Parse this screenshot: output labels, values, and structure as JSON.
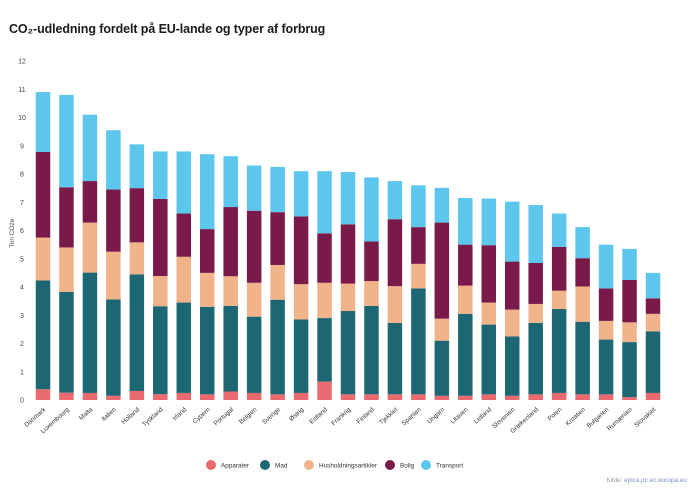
{
  "title": "CO₂-udledning fordelt på EU-lande og typer af forbrug",
  "source_prefix": "Kilde: ",
  "source_link": "eplca.jrc.ec.europa.eu",
  "chart_data": {
    "type": "bar",
    "stacked": true,
    "ylabel": "Ton CO2e",
    "xlabel": "",
    "ylim": [
      0,
      12
    ],
    "yticks": [
      0,
      1,
      2,
      3,
      4,
      5,
      6,
      7,
      8,
      9,
      10,
      11,
      12
    ],
    "grid": false,
    "legend_position": "bottom",
    "categories": [
      "Danmark",
      "Luxembourg",
      "Malta",
      "Italien",
      "Holland",
      "Tyskland",
      "Irland",
      "Cypern",
      "Portugal",
      "Belgien",
      "Sverige",
      "Østrig",
      "Estland",
      "Frankrig",
      "Finland",
      "Tjekkiet",
      "Spanien",
      "Ungarn",
      "Litauen",
      "Letland",
      "Slovenien",
      "Grækenland",
      "Polen",
      "Kroatien",
      "Bulgarien",
      "Rumænien",
      "Slovakiet"
    ],
    "series": [
      {
        "name": "Apparater",
        "color": "#ea6a6f",
        "values": [
          0.38,
          0.26,
          0.25,
          0.15,
          0.32,
          0.21,
          0.25,
          0.2,
          0.3,
          0.25,
          0.2,
          0.25,
          0.65,
          0.2,
          0.2,
          0.2,
          0.2,
          0.15,
          0.15,
          0.2,
          0.15,
          0.2,
          0.25,
          0.2,
          0.2,
          0.1,
          0.25
        ]
      },
      {
        "name": "Mad",
        "color": "#1d6673",
        "values": [
          3.85,
          3.57,
          4.26,
          3.41,
          4.13,
          3.11,
          3.2,
          3.1,
          3.03,
          2.7,
          3.35,
          2.6,
          2.25,
          2.95,
          3.13,
          2.53,
          3.75,
          1.95,
          2.9,
          2.47,
          2.1,
          2.53,
          2.97,
          2.57,
          1.94,
          1.95,
          2.18
        ]
      },
      {
        "name": "Husholdningsartikler",
        "color": "#f1b38a",
        "values": [
          1.52,
          1.57,
          1.77,
          1.69,
          1.13,
          1.07,
          1.62,
          1.2,
          1.05,
          1.2,
          1.23,
          1.25,
          1.25,
          0.97,
          0.88,
          1.3,
          0.87,
          0.78,
          1.0,
          0.78,
          0.95,
          0.67,
          0.65,
          1.25,
          0.66,
          0.7,
          0.62
        ]
      },
      {
        "name": "Bolig",
        "color": "#7a1a4a",
        "values": [
          3.03,
          2.13,
          1.47,
          2.2,
          1.92,
          2.73,
          1.53,
          1.55,
          2.45,
          2.55,
          1.87,
          2.4,
          1.75,
          2.1,
          1.4,
          2.37,
          1.3,
          3.4,
          1.45,
          2.03,
          1.7,
          1.45,
          1.55,
          1.0,
          1.15,
          1.5,
          0.55
        ]
      },
      {
        "name": "Transport",
        "color": "#5cc6ec",
        "values": [
          2.12,
          3.27,
          2.35,
          2.1,
          1.55,
          1.68,
          2.2,
          2.65,
          1.8,
          1.6,
          1.6,
          1.6,
          2.2,
          1.85,
          2.27,
          1.35,
          1.48,
          1.23,
          1.65,
          1.65,
          2.12,
          2.05,
          1.18,
          1.1,
          1.55,
          1.1,
          0.9
        ]
      }
    ]
  }
}
